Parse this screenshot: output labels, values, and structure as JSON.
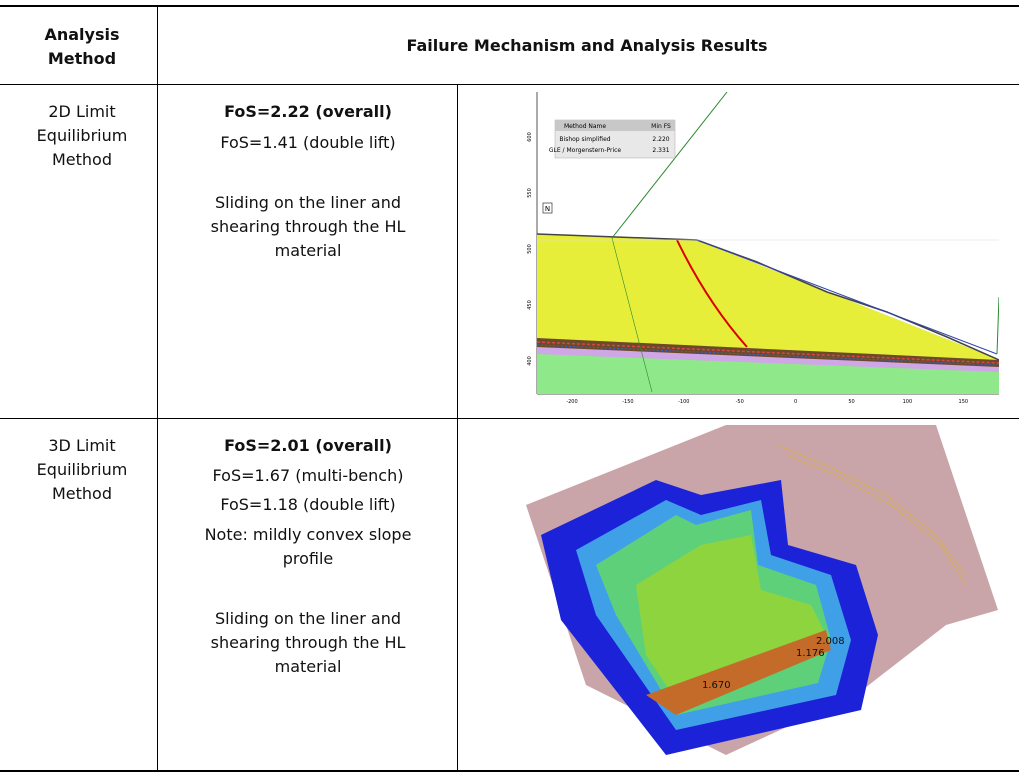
{
  "header": {
    "col1": "Analysis Method",
    "col2": "Failure Mechanism and Analysis Results"
  },
  "rows": [
    {
      "method": "2D Limit Equilibrium Method",
      "results": [
        "FoS=2.22 (overall)",
        "FoS=1.41 (double lift)"
      ],
      "mechanism": "Sliding on the liner and shearing through the HL material",
      "figure": {
        "legend": {
          "headers": [
            "Method Name",
            "Min FS"
          ],
          "rows": [
            [
              "Bishop simplified",
              "2.220"
            ],
            [
              "GLE / Morgenstern-Price",
              "2.331"
            ]
          ]
        },
        "marker": "N",
        "xticks": [
          -200,
          -150,
          -100,
          -50,
          0,
          50,
          100,
          150
        ],
        "yticks": [
          600,
          550,
          500,
          450,
          400
        ]
      }
    },
    {
      "method": "3D Limit Equilibrium Method",
      "results": [
        "FoS=2.01 (overall)",
        "FoS=1.67 (multi-bench)",
        "FoS=1.18 (double lift)",
        "Note: mildly convex slope profile"
      ],
      "mechanism": "Sliding on the liner and shearing through the HL material",
      "figure": {
        "labels": [
          "2.008",
          "1.176",
          "1.670"
        ]
      }
    }
  ]
}
